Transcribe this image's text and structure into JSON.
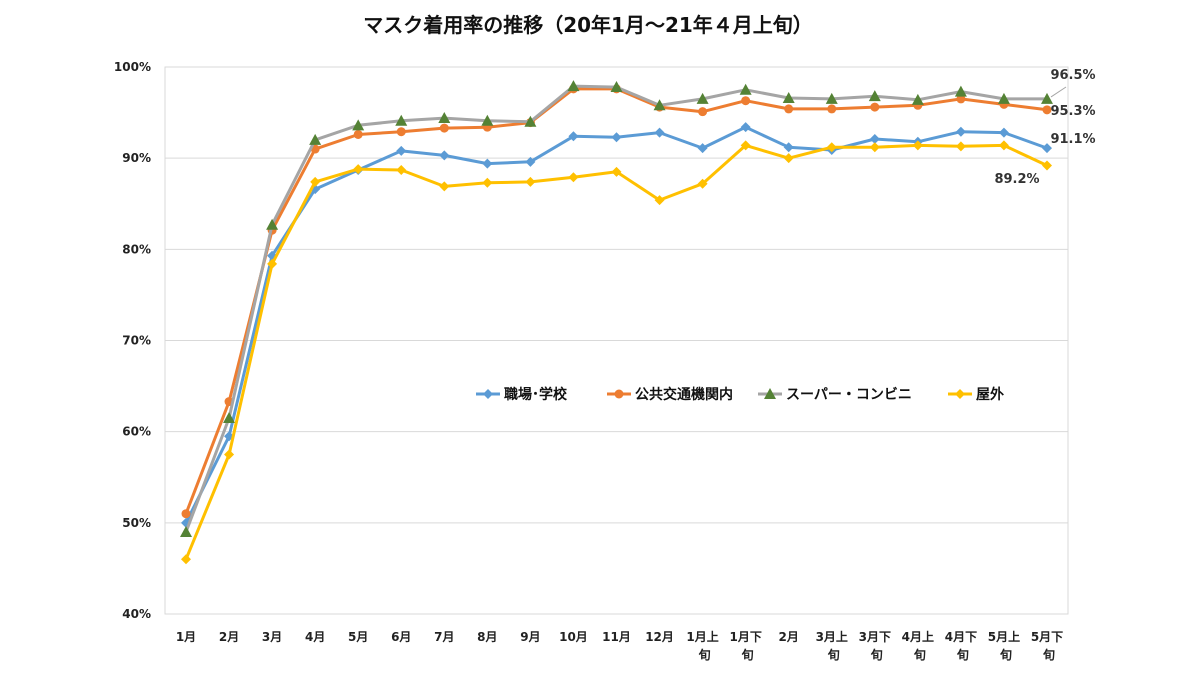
{
  "chart_data": {
    "type": "line",
    "title": "マスク着用率の推移（20年1月～21年４月上旬）",
    "xlabel": "",
    "ylabel": "",
    "ylim": [
      40,
      100
    ],
    "yticks": [
      "40%",
      "50%",
      "60%",
      "70%",
      "80%",
      "90%",
      "100%"
    ],
    "grid": true,
    "legend_position": "center",
    "categories": [
      [
        "1月"
      ],
      [
        "2月"
      ],
      [
        "3月"
      ],
      [
        "4月"
      ],
      [
        "5月"
      ],
      [
        "6月"
      ],
      [
        "7月"
      ],
      [
        "8月"
      ],
      [
        "9月"
      ],
      [
        "10月"
      ],
      [
        "11月"
      ],
      [
        "12月"
      ],
      [
        "1月上",
        "旬"
      ],
      [
        "1月下",
        "旬"
      ],
      [
        "2月"
      ],
      [
        "3月上",
        "旬"
      ],
      [
        "3月下",
        "旬"
      ],
      [
        "4月上",
        "旬"
      ],
      [
        "4月下",
        "旬"
      ],
      [
        "5月上",
        "旬"
      ],
      [
        "5月下",
        "旬"
      ]
    ],
    "series": [
      {
        "name": "職場･学校",
        "color": "#5b9bd5",
        "marker": "diamond",
        "values": [
          50.0,
          59.5,
          79.3,
          86.6,
          88.7,
          90.8,
          90.3,
          89.4,
          89.6,
          92.4,
          92.3,
          92.8,
          91.1,
          93.4,
          91.2,
          90.9,
          92.1,
          91.8,
          92.9,
          92.8,
          91.1
        ]
      },
      {
        "name": "公共交通機関内",
        "color": "#ed7d31",
        "marker": "circle",
        "values": [
          51.0,
          63.3,
          82.1,
          91.0,
          92.6,
          92.9,
          93.3,
          93.4,
          93.9,
          97.6,
          97.6,
          95.6,
          95.1,
          96.3,
          95.4,
          95.4,
          95.6,
          95.8,
          96.5,
          95.9,
          95.3
        ]
      },
      {
        "name": "スーパー・コンビニ",
        "color": "#a5a5a5",
        "marker_color": "#548235",
        "marker": "triangle",
        "values": [
          49.0,
          61.5,
          82.7,
          92.0,
          93.6,
          94.1,
          94.4,
          94.1,
          94.0,
          97.9,
          97.8,
          95.8,
          96.5,
          97.5,
          96.6,
          96.5,
          96.8,
          96.4,
          97.3,
          96.5,
          96.5
        ]
      },
      {
        "name": "屋外",
        "color": "#ffc000",
        "marker": "diamond",
        "values": [
          46.0,
          57.5,
          78.4,
          87.4,
          88.8,
          88.7,
          86.9,
          87.3,
          87.4,
          87.9,
          88.5,
          85.4,
          87.2,
          91.4,
          90.0,
          91.2,
          91.2,
          91.4,
          91.3,
          91.4,
          89.2
        ]
      }
    ],
    "annotations": [
      {
        "text": "96.5%",
        "series": 2
      },
      {
        "text": "95.3%",
        "series": 1
      },
      {
        "text": "91.1%",
        "series": 0
      },
      {
        "text": "89.2%",
        "series": 3
      }
    ]
  }
}
